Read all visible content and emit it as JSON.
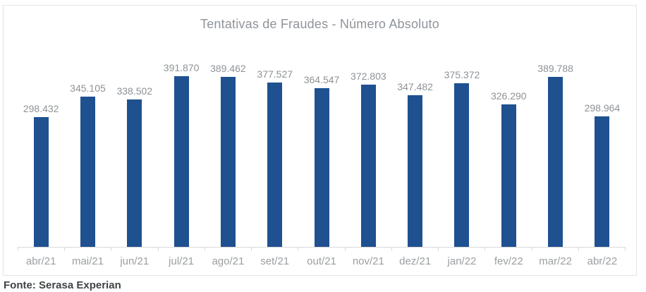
{
  "chart_data": {
    "type": "bar",
    "title": "Tentativas de Fraudes - Número Absoluto",
    "categories": [
      "abr/21",
      "mai/21",
      "jun/21",
      "jul/21",
      "ago/21",
      "set/21",
      "out/21",
      "nov/21",
      "dez/21",
      "jan/22",
      "fev/22",
      "mar/22",
      "abr/22"
    ],
    "values": [
      298432,
      345105,
      338502,
      391870,
      389462,
      377527,
      364547,
      372803,
      347482,
      375372,
      326290,
      389788,
      298964
    ],
    "value_labels": [
      "298.432",
      "345.105",
      "338.502",
      "391.870",
      "389.462",
      "377.527",
      "364.547",
      "372.803",
      "347.482",
      "375.372",
      "326.290",
      "389.788",
      "298.964"
    ],
    "xlabel": "",
    "ylabel": "",
    "ylim": [
      0,
      391870
    ],
    "grid": false,
    "legend": "none",
    "data_labels": "above-bars",
    "source_note": "Fonte: Serasa Experian",
    "colors": {
      "bar": "#1f5191",
      "title": "#8f9499",
      "value_label": "#8e9296",
      "axis_label": "#9b9ea1",
      "axis_line": "#d9d9d9",
      "frame_border": "#e4e4e6",
      "source_text": "#3f4345"
    }
  }
}
